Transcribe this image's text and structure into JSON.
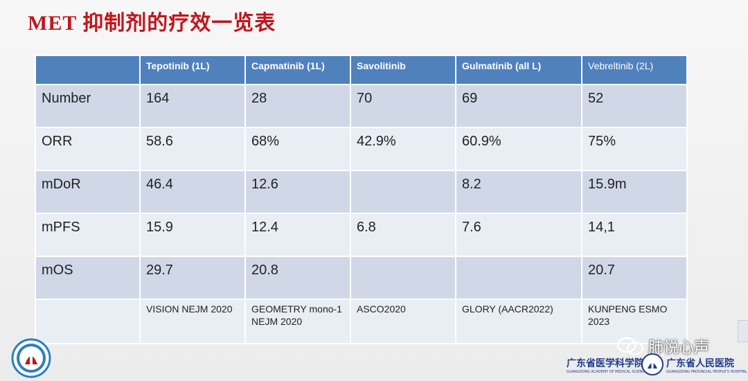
{
  "title": "MET 抑制剂的疗效一览表",
  "table": {
    "headers": [
      "",
      "Tepotinib (1L)",
      "Capmatinib (1L)",
      "Savolitinib",
      "Gulmatinib (all L)",
      "Vebreltinib (2L)"
    ],
    "rows": [
      {
        "label": "Number",
        "cells": [
          "164",
          "28",
          "70",
          "69",
          "52"
        ]
      },
      {
        "label": "ORR",
        "cells": [
          "58.6",
          "68%",
          "42.9%",
          "60.9%",
          "75%"
        ]
      },
      {
        "label": "mDoR",
        "cells": [
          "46.4",
          "12.6",
          "",
          "8.2",
          "15.9m"
        ]
      },
      {
        "label": "mPFS",
        "cells": [
          "15.9",
          "12.4",
          "6.8",
          "7.6",
          "14,1"
        ]
      },
      {
        "label": "mOS",
        "cells": [
          "29.7",
          "20.8",
          "",
          "",
          "20.7"
        ]
      }
    ],
    "references": [
      "VISION NEJM 2020",
      "GEOMETRY mono-1 NEJM 2020",
      "ASCO2020",
      "GLORY (AACR2022)",
      "KUNPENG ESMO 2023"
    ]
  },
  "watermark": "肺悦心声",
  "footer": {
    "academy": "广东省医学科学院",
    "academy_en": "GUANGDONG ACADEMY OF MEDICAL SCIENCES",
    "hospital": "广东省人民医院",
    "hospital_en": "GUANGDONG PROVINCIAL PEOPLE'S HOSPITAL"
  },
  "colors": {
    "title": "#c0161c",
    "header": "#4f81bd",
    "band_dark": "#d0d8e8",
    "band_light": "#e9edf4",
    "footer": "#1f3c88"
  }
}
